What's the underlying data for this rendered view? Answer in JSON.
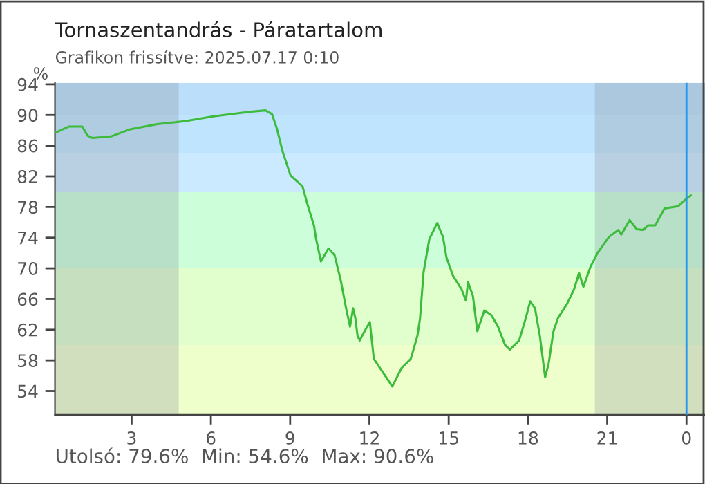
{
  "chart_data": {
    "type": "line",
    "title": "Tornaszentandrás - Páratartalom",
    "subtitle": "Grafikon frissítve: 2025.07.17 0:10",
    "ylabel": "%",
    "annotations": [
      "Utolsó: 79.6%  Min: 54.6%  Max: 90.6%"
    ],
    "x": [
      "2025-07-16T00:07",
      "2025-07-16T00:38",
      "2025-07-16T01:08",
      "2025-07-16T01:20",
      "2025-07-16T01:31",
      "2025-07-16T02:13",
      "2025-07-16T02:55",
      "2025-07-16T03:58",
      "2025-07-16T05:01",
      "2025-07-16T06:03",
      "2025-07-16T07:27",
      "2025-07-16T08:04",
      "2025-07-16T08:19",
      "2025-07-16T08:30",
      "2025-07-16T08:43",
      "2025-07-16T09:01",
      "2025-07-16T09:28",
      "2025-07-16T09:38",
      "2025-07-16T09:54",
      "2025-07-16T09:59",
      "2025-07-16T10:10",
      "2025-07-16T10:27",
      "2025-07-16T10:41",
      "2025-07-16T10:55",
      "2025-07-16T11:07",
      "2025-07-16T11:16",
      "2025-07-16T11:23",
      "2025-07-16T11:28",
      "2025-07-16T11:33",
      "2025-07-16T11:38",
      "2025-07-16T11:49",
      "2025-07-16T12:01",
      "2025-07-16T12:10",
      "2025-07-16T12:31",
      "2025-07-16T12:52",
      "2025-07-16T13:13",
      "2025-07-16T13:34",
      "2025-07-16T13:49",
      "2025-07-16T13:55",
      "2025-07-16T14:03",
      "2025-07-16T14:16",
      "2025-07-16T14:34",
      "2025-07-16T14:47",
      "2025-07-16T14:55",
      "2025-07-16T15:10",
      "2025-07-16T15:29",
      "2025-07-16T15:39",
      "2025-07-16T15:44",
      "2025-07-16T15:55",
      "2025-07-16T16:05",
      "2025-07-16T16:21",
      "2025-07-16T16:37",
      "2025-07-16T16:52",
      "2025-07-16T17:08",
      "2025-07-16T17:19",
      "2025-07-16T17:40",
      "2025-07-16T17:55",
      "2025-07-16T18:05",
      "2025-07-16T18:16",
      "2025-07-16T18:27",
      "2025-07-16T18:39",
      "2025-07-16T18:47",
      "2025-07-16T18:58",
      "2025-07-16T19:08",
      "2025-07-16T19:29",
      "2025-07-16T19:45",
      "2025-07-16T19:56",
      "2025-07-16T20:06",
      "2025-07-16T20:22",
      "2025-07-16T20:38",
      "2025-07-16T21:04",
      "2025-07-16T21:25",
      "2025-07-16T21:32",
      "2025-07-16T21:51",
      "2025-07-16T22:07",
      "2025-07-16T22:22",
      "2025-07-16T22:33",
      "2025-07-16T22:49",
      "2025-07-16T23:10",
      "2025-07-16T23:41",
      "2025-07-17T00:02",
      "2025-07-17T00:10"
    ],
    "series": [
      {
        "color": "#3dbb3d",
        "values": [
          87.7,
          88.5,
          88.5,
          87.3,
          87.0,
          87.2,
          88.1,
          88.8,
          89.2,
          89.8,
          90.4,
          90.6,
          90.1,
          88.2,
          85.2,
          82.1,
          80.7,
          78.6,
          75.6,
          73.8,
          70.9,
          72.6,
          71.7,
          68.4,
          64.8,
          62.4,
          64.8,
          63.5,
          61.2,
          60.6,
          61.8,
          63.0,
          58.2,
          56.4,
          54.6,
          57.0,
          58.2,
          61.2,
          63.5,
          69.5,
          73.8,
          75.9,
          74.1,
          71.4,
          69.0,
          67.3,
          65.8,
          68.2,
          66.4,
          61.8,
          64.5,
          63.9,
          62.4,
          60.0,
          59.4,
          60.6,
          63.5,
          65.7,
          64.8,
          61.2,
          55.8,
          57.6,
          61.8,
          63.5,
          65.4,
          67.3,
          69.4,
          67.6,
          70.2,
          72.0,
          74.1,
          75.0,
          74.4,
          76.3,
          75.1,
          75.0,
          75.6,
          75.6,
          77.8,
          78.1,
          79.2,
          79.5
        ]
      }
    ],
    "xlim": [
      "2025-07-16T00:06",
      "2025-07-17T00:42"
    ],
    "ylim": [
      50.9,
      94.2
    ],
    "xticks": [
      {
        "value": "2025-07-16T03:00",
        "label": "3"
      },
      {
        "value": "2025-07-16T06:00",
        "label": "6"
      },
      {
        "value": "2025-07-16T09:00",
        "label": "9"
      },
      {
        "value": "2025-07-16T12:00",
        "label": "12"
      },
      {
        "value": "2025-07-16T15:00",
        "label": "15"
      },
      {
        "value": "2025-07-16T18:00",
        "label": "18"
      },
      {
        "value": "2025-07-16T21:00",
        "label": "21"
      },
      {
        "value": "2025-07-17T00:00",
        "label": "0"
      }
    ],
    "yticks": [
      54,
      58,
      62,
      66,
      70,
      74,
      78,
      82,
      86,
      90,
      94
    ],
    "bands": [
      {
        "axis": "y",
        "from": 90,
        "to": 94.2,
        "color": "#bbdefb"
      },
      {
        "axis": "y",
        "from": 85,
        "to": 90,
        "color": "#bfe4fd"
      },
      {
        "axis": "y",
        "from": 80,
        "to": 85,
        "color": "#cceaff"
      },
      {
        "axis": "y",
        "from": 70,
        "to": 80,
        "color": "#ccffd9"
      },
      {
        "axis": "y",
        "from": 60,
        "to": 70,
        "color": "#e0ffcc"
      },
      {
        "axis": "y",
        "from": 50.9,
        "to": 60,
        "color": "#efffcc"
      },
      {
        "axis": "x",
        "from": "2025-07-16T00:06",
        "to": "2025-07-16T04:47",
        "color": "#8a96a0"
      },
      {
        "axis": "x",
        "from": "2025-07-16T20:32",
        "to": "2025-07-17T00:42",
        "color": "#8a96a0"
      }
    ],
    "ref_lines": [
      {
        "axis": "x",
        "value": "2025-07-17T00:00",
        "color": "#2196f3"
      }
    ],
    "grid": false,
    "legend": false,
    "line_style": "solid",
    "marker": "none"
  }
}
